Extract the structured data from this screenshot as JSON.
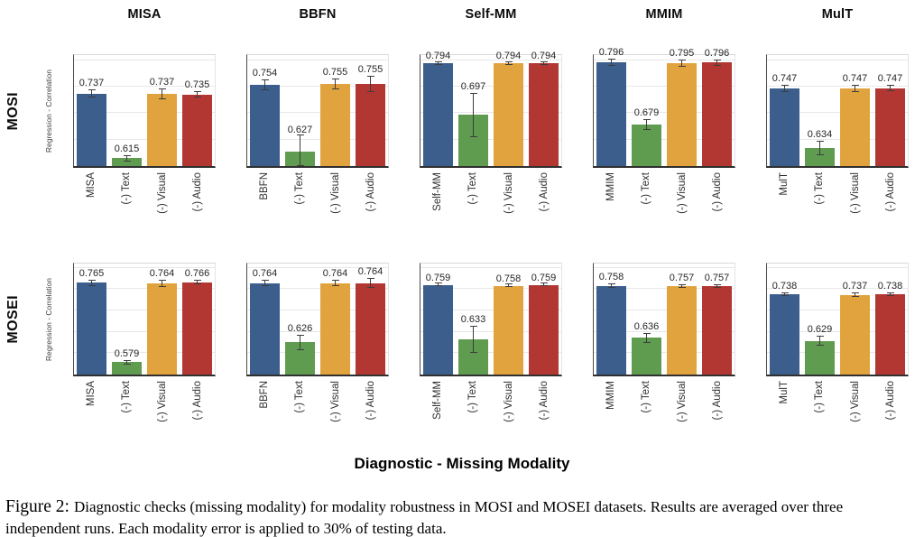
{
  "figure": {
    "caption_label": "Figure 2:",
    "caption_text": "Diagnostic checks (missing modality) for modality robustness in MOSI and MOSEI datasets. Results are averaged over three independent runs. Each modality error is applied to 30% of testing data."
  },
  "chart_data": {
    "type": "bar",
    "layout": "small-multiples 2 rows x 5 columns, grid on, no legend, value labels above bars with error bars",
    "column_titles": [
      "MISA",
      "BBFN",
      "Self-MM",
      "MMIM",
      "MulT"
    ],
    "row_labels": [
      "MOSI",
      "MOSEI"
    ],
    "ylabel": "Regression - Correlation",
    "xlabel": "Diagnostic - Missing Modality",
    "bar_colors": [
      "#3b5e8c",
      "#5f9c50",
      "#e1a33e",
      "#b23732"
    ],
    "grid_step": 0.05,
    "rows": [
      {
        "label": "MOSI",
        "ylim": [
          0.6,
          0.81
        ],
        "panels": [
          {
            "title": "MISA",
            "categories": [
              "MISA",
              "(-) Text",
              "(-) Visual",
              "(-) Audio"
            ],
            "values": [
              0.737,
              0.615,
              0.737,
              0.735
            ],
            "errors": [
              0.008,
              0.006,
              0.01,
              0.006
            ]
          },
          {
            "title": "BBFN",
            "categories": [
              "BBFN",
              "(-) Text",
              "(-) Visual",
              "(-) Audio"
            ],
            "values": [
              0.754,
              0.627,
              0.755,
              0.755
            ],
            "errors": [
              0.01,
              0.03,
              0.01,
              0.015
            ]
          },
          {
            "title": "Self-MM",
            "categories": [
              "Self-MM",
              "(-) Text",
              "(-) Visual",
              "(-) Audio"
            ],
            "values": [
              0.794,
              0.697,
              0.794,
              0.794
            ],
            "errors": [
              0.002,
              0.042,
              0.002,
              0.002
            ]
          },
          {
            "title": "MMIM",
            "categories": [
              "MMIM",
              "(-) Text",
              "(-) Visual",
              "(-) Audio"
            ],
            "values": [
              0.796,
              0.679,
              0.795,
              0.796
            ],
            "errors": [
              0.007,
              0.01,
              0.007,
              0.006
            ]
          },
          {
            "title": "MulT",
            "categories": [
              "MulT",
              "(-) Text",
              "(-) Visual",
              "(-) Audio"
            ],
            "values": [
              0.747,
              0.634,
              0.747,
              0.747
            ],
            "errors": [
              0.007,
              0.013,
              0.007,
              0.006
            ]
          }
        ]
      },
      {
        "label": "MOSEI",
        "ylim": [
          0.55,
          0.81
        ],
        "panels": [
          {
            "title": "MISA",
            "categories": [
              "MISA",
              "(-) Text",
              "(-) Visual",
              "(-) Audio"
            ],
            "values": [
              0.765,
              0.579,
              0.764,
              0.766
            ],
            "errors": [
              0.007,
              0.005,
              0.008,
              0.005
            ]
          },
          {
            "title": "BBFN",
            "categories": [
              "BBFN",
              "(-) Text",
              "(-) Visual",
              "(-) Audio"
            ],
            "values": [
              0.764,
              0.626,
              0.764,
              0.764
            ],
            "errors": [
              0.007,
              0.018,
              0.007,
              0.012
            ]
          },
          {
            "title": "Self-MM",
            "categories": [
              "Self-MM",
              "(-) Text",
              "(-) Visual",
              "(-) Audio"
            ],
            "values": [
              0.759,
              0.633,
              0.758,
              0.759
            ],
            "errors": [
              0.002,
              0.032,
              0.002,
              0.002
            ]
          },
          {
            "title": "MMIM",
            "categories": [
              "MMIM",
              "(-) Text",
              "(-) Visual",
              "(-) Audio"
            ],
            "values": [
              0.758,
              0.636,
              0.757,
              0.757
            ],
            "errors": [
              0.005,
              0.011,
              0.005,
              0.004
            ]
          },
          {
            "title": "MulT",
            "categories": [
              "MulT",
              "(-) Text",
              "(-) Visual",
              "(-) Audio"
            ],
            "values": [
              0.738,
              0.629,
              0.737,
              0.738
            ],
            "errors": [
              0.005,
              0.011,
              0.005,
              0.004
            ]
          }
        ]
      }
    ]
  }
}
